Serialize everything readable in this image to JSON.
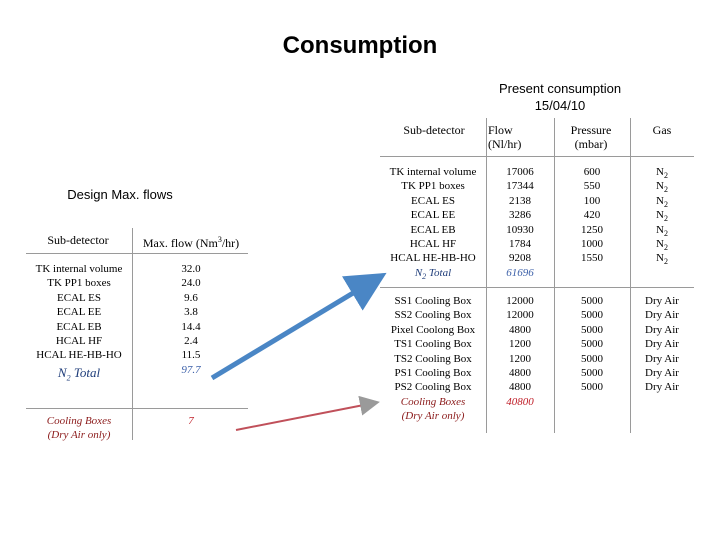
{
  "title": "Consumption",
  "present": {
    "heading": "Present consumption",
    "date": "15/04/10",
    "headers": [
      "Sub-detector",
      "Flow\n(Nl/hr)",
      "Pressure\n(mbar)",
      "Gas"
    ],
    "n2_rows": [
      {
        "name": "TK internal volume",
        "flow": "17006",
        "pressure": "600",
        "gas": "N2"
      },
      {
        "name": "TK PP1 boxes",
        "flow": "17344",
        "pressure": "550",
        "gas": "N2"
      },
      {
        "name": "ECAL ES",
        "flow": "2138",
        "pressure": "100",
        "gas": "N2"
      },
      {
        "name": "ECAL EE",
        "flow": "3286",
        "pressure": "420",
        "gas": "N2"
      },
      {
        "name": "ECAL EB",
        "flow": "10930",
        "pressure": "1250",
        "gas": "N2"
      },
      {
        "name": "HCAL HF",
        "flow": "1784",
        "pressure": "1000",
        "gas": "N2"
      },
      {
        "name": "HCAL HE-HB-HO",
        "flow": "9208",
        "pressure": "1550",
        "gas": "N2"
      }
    ],
    "n2_total": {
      "name": "N2 Total",
      "flow": "61696"
    },
    "cool_rows": [
      {
        "name": "SS1 Cooling Box",
        "flow": "12000",
        "pressure": "5000",
        "gas": "Dry Air"
      },
      {
        "name": "SS2 Cooling Box",
        "flow": "12000",
        "pressure": "5000",
        "gas": "Dry Air"
      },
      {
        "name": "Pixel Coolong Box",
        "flow": "4800",
        "pressure": "5000",
        "gas": "Dry Air"
      },
      {
        "name": "TS1 Cooling Box",
        "flow": "1200",
        "pressure": "5000",
        "gas": "Dry Air"
      },
      {
        "name": "TS2 Cooling Box",
        "flow": "1200",
        "pressure": "5000",
        "gas": "Dry Air"
      },
      {
        "name": "PS1 Cooling Box",
        "flow": "4800",
        "pressure": "5000",
        "gas": "Dry Air"
      },
      {
        "name": "PS2 Cooling Box",
        "flow": "4800",
        "pressure": "5000",
        "gas": "Dry Air"
      }
    ],
    "cool_total": {
      "name_line1": "Cooling Boxes",
      "name_line2": "(Dry Air only)",
      "flow": "40800"
    }
  },
  "design": {
    "heading": "Design Max. flows",
    "headers": [
      "Sub-detector",
      "Max. flow (Nm3/hr)"
    ],
    "rows": [
      {
        "name": "TK internal volume",
        "flow": "32.0"
      },
      {
        "name": "TK PP1 boxes",
        "flow": "24.0"
      },
      {
        "name": "ECAL ES",
        "flow": "9.6"
      },
      {
        "name": "ECAL EE",
        "flow": "3.8"
      },
      {
        "name": "ECAL EB",
        "flow": "14.4"
      },
      {
        "name": "HCAL HF",
        "flow": "2.4"
      },
      {
        "name": "HCAL HE-HB-HO",
        "flow": "11.5"
      }
    ],
    "n2_total": {
      "name": "N2 Total",
      "flow": "97.7"
    },
    "cool_total": {
      "name_line1": "Cooling Boxes",
      "name_line2": "(Dry Air only)",
      "flow": "7"
    }
  },
  "colors": {
    "blue_arrow": "#4a86c5",
    "red_arrow": "#c0505a",
    "total_text": "#1f3d7a",
    "cool_text": "#8b1a1a"
  }
}
